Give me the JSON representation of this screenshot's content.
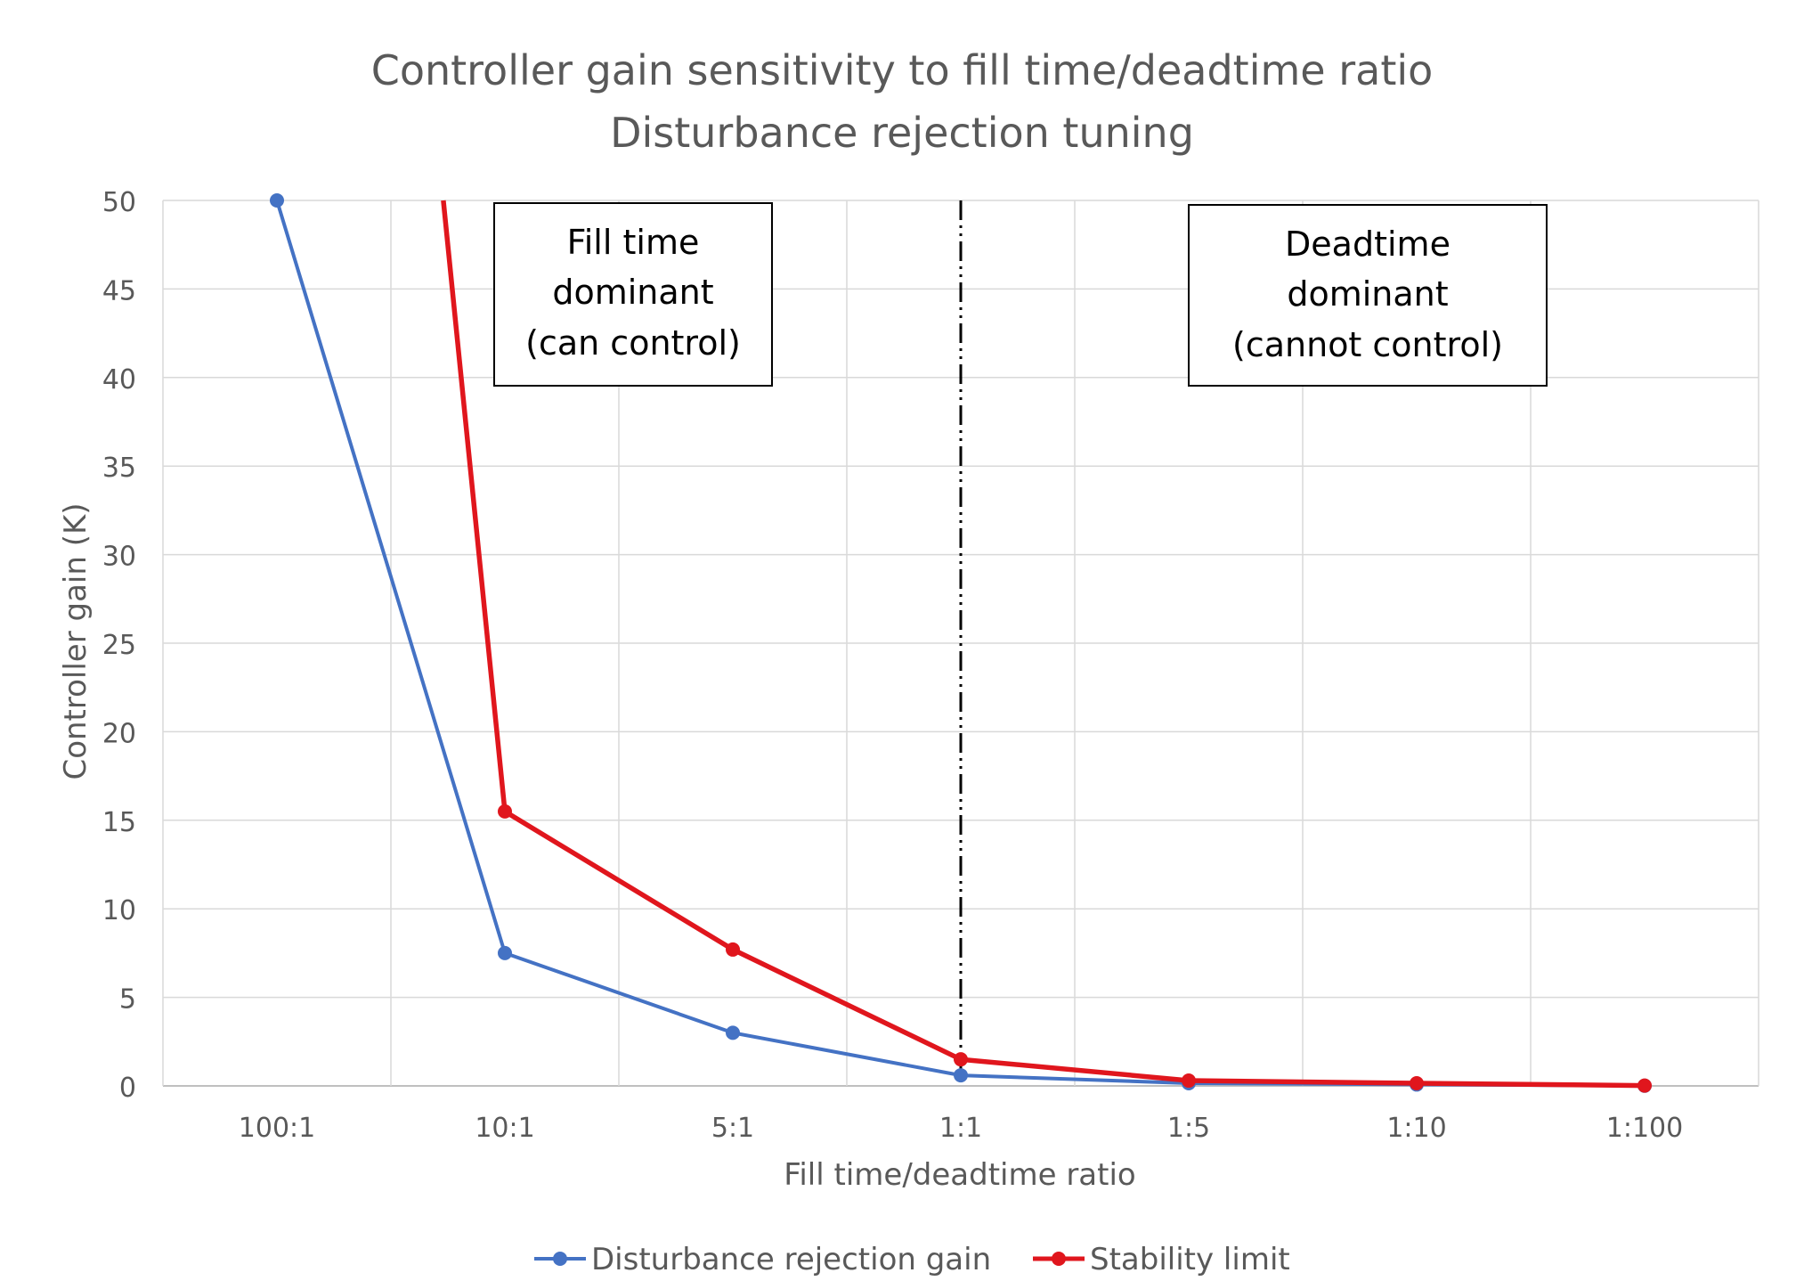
{
  "chart_data": {
    "type": "line",
    "title_line1": "Controller gain sensitivity to fill time/deadtime ratio",
    "title_line2": "Disturbance rejection tuning",
    "xlabel": "Fill time/deadtime ratio",
    "ylabel": "Controller gain (K)",
    "categories": [
      "100:1",
      "10:1",
      "5:1",
      "1:1",
      "1:5",
      "1:10",
      "1:100"
    ],
    "ylim": [
      0,
      50
    ],
    "yticks": [
      "0",
      "5",
      "10",
      "15",
      "20",
      "25",
      "30",
      "35",
      "40",
      "45",
      "50"
    ],
    "grid": true,
    "legend_position": "bottom",
    "series": [
      {
        "name": "Disturbance rejection gain",
        "color": "#4472C4",
        "values": [
          50,
          7.5,
          3.0,
          0.6,
          0.15,
          0.08,
          0.01
        ]
      },
      {
        "name": "Stability limit",
        "color": "#E0161D",
        "values": [
          null,
          15.5,
          7.7,
          1.5,
          0.3,
          0.15,
          0.02
        ],
        "offscale_start": {
          "from_category": 0.73,
          "value": 50
        }
      }
    ],
    "divider_category": "1:1",
    "annotations": [
      {
        "line1": "Fill time",
        "line2": "dominant",
        "line3": "(can control)"
      },
      {
        "line1": "Deadtime",
        "line2": "dominant",
        "line3": "(cannot control)"
      }
    ]
  }
}
